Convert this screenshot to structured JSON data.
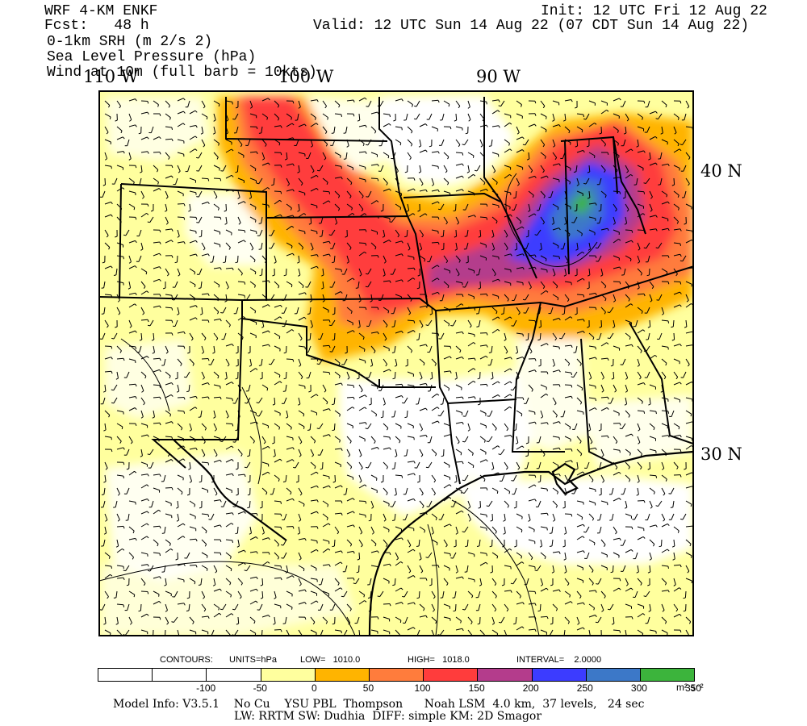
{
  "header": {
    "model": "WRF 4-KM ENKF",
    "fcst": "Fcst:   48 h",
    "init": "Init: 12 UTC Fri 12 Aug 22",
    "valid": "Valid: 12 UTC Sun 14 Aug 22 (07 CDT Sun 14 Aug 22)",
    "field1": "0-1km SRH (m 2/s 2)",
    "field2": "Sea Level Pressure (hPa)",
    "field3": "Wind at 10m (full barb = 10kts)"
  },
  "axes": {
    "lon_labels": [
      "110 W",
      "100 W",
      "90 W"
    ],
    "lat_labels": [
      "40 N",
      "30 N"
    ]
  },
  "contours": {
    "label": "CONTOURS:",
    "units": "UNITS=hPa",
    "low": "LOW=   1010.0",
    "high": "HIGH=   1018.0",
    "interval": "INTERVAL=    2.0000"
  },
  "colorbar": {
    "labels": [
      "-100",
      "-50",
      "0",
      "50",
      "100",
      "150",
      "200",
      "250",
      "300",
      "350"
    ],
    "units": "m² s⁻²",
    "colors": [
      "#ffffff",
      "#ffffff",
      "#ffffff",
      "#ffff9e",
      "#ffb400",
      "#ff7c3c",
      "#ff3c3c",
      "#b43c8c",
      "#3c3cff",
      "#3c78c8",
      "#3cb43c"
    ]
  },
  "footer": {
    "line1": "Model Info: V3.5.1    No Cu    YSU PBL  Thompson      Noah LSM  4.0 km,  37 levels,   24 sec",
    "line2": "LW: RRTM SW: Dudhia  DIFF: simple KM: 2D Smagor"
  }
}
